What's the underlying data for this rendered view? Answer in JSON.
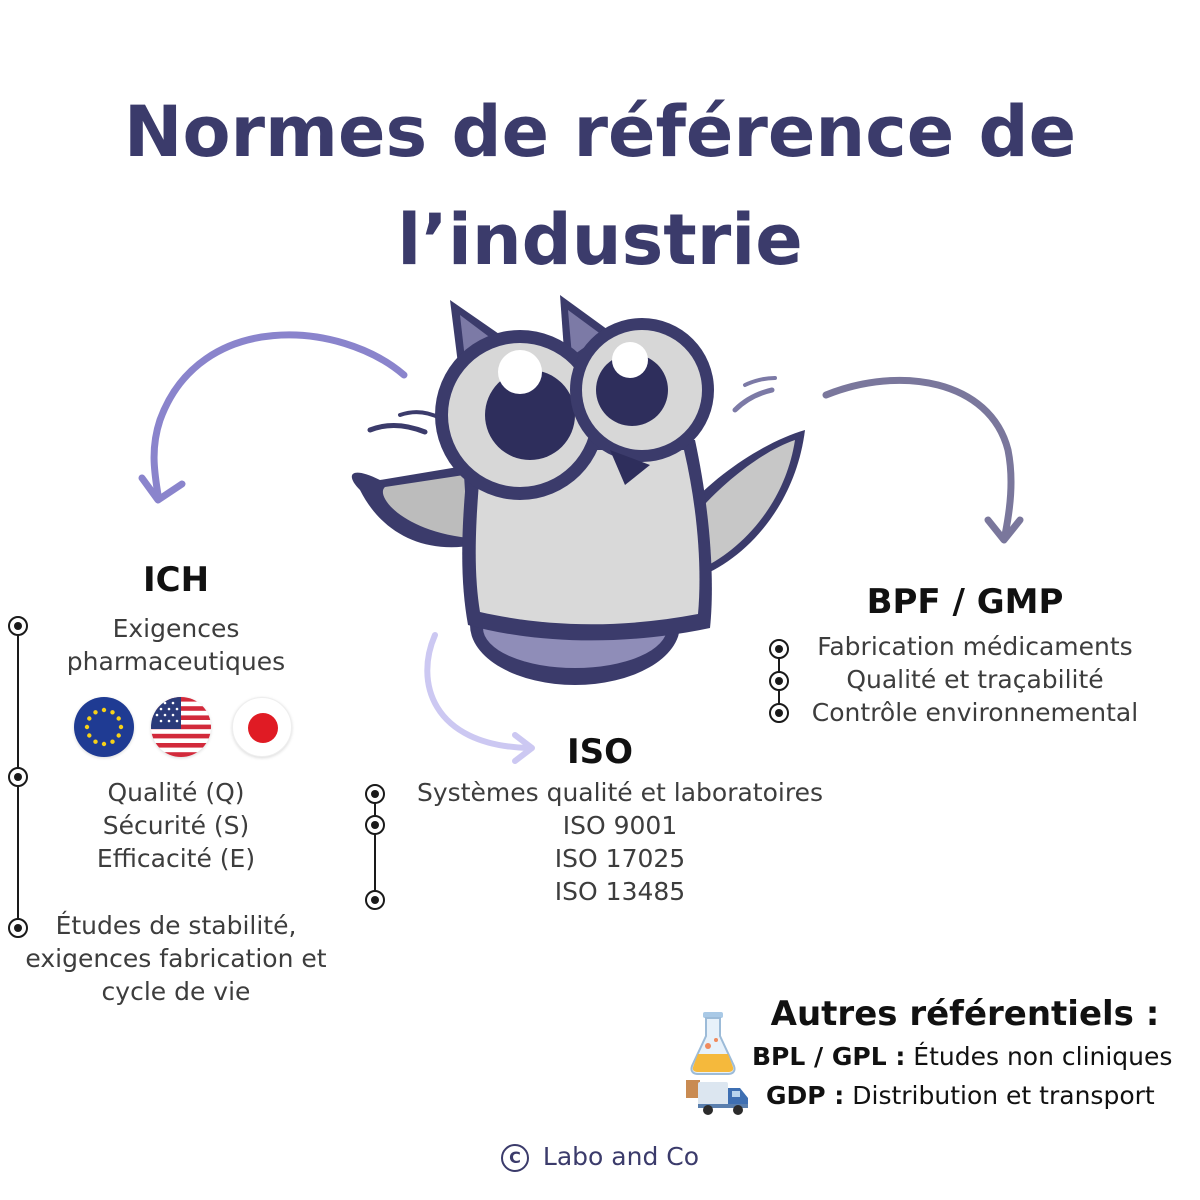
{
  "title": {
    "line1": "Normes de référence de",
    "line2": "l’industrie"
  },
  "ich": {
    "heading": "ICH",
    "requirements": [
      "Exigences",
      "pharmaceutiques"
    ],
    "qse": [
      "Qualité (Q)",
      "Sécurité (S)",
      "Efficacité (E)"
    ],
    "stability": [
      "Études de stabilité,",
      "exigences fabrication et",
      "cycle de vie"
    ],
    "flags": [
      "eu-flag-icon",
      "usa-flag-icon",
      "japan-flag-icon"
    ]
  },
  "iso": {
    "heading": "ISO",
    "lines": [
      "Systèmes qualité et laboratoires",
      "ISO 9001",
      "ISO 17025",
      "ISO 13485"
    ]
  },
  "bpf": {
    "heading": "BPF / GMP",
    "lines": [
      "Fabrication médicaments",
      "Qualité et traçabilité",
      "Contrôle environnemental"
    ]
  },
  "autres": {
    "heading": "Autres référentiels :",
    "items": [
      {
        "label": "BPL / GPL :",
        "text": "Études non cliniques",
        "icon": "flask-icon"
      },
      {
        "label": "GDP :",
        "text": "Distribution et transport",
        "icon": "truck-icon"
      }
    ]
  },
  "footer": {
    "symbol": "C",
    "text": "Labo and Co"
  },
  "colors": {
    "title": "#3b3b6b",
    "arrow_left": "#8a84cc",
    "arrow_right": "#7a779c",
    "arrow_bottom": "#ccc8f2",
    "mascot_outline": "#2e2e5c"
  }
}
